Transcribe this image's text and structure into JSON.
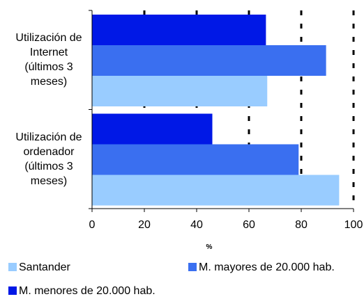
{
  "chart_data": {
    "type": "bar",
    "orientation": "horizontal",
    "categories": [
      [
        "Utilización de",
        "Internet",
        "(últimos 3",
        "meses)"
      ],
      [
        "Utilización de",
        "ordenador",
        "(últimos 3",
        "meses)"
      ]
    ],
    "series": [
      {
        "name": "M. menores de 20.000 hab.",
        "color": "#0018e6",
        "values": [
          66.5,
          46
        ]
      },
      {
        "name": "M. mayores de 20.000 hab.",
        "color": "#3a6ff0",
        "values": [
          89.5,
          79
        ]
      },
      {
        "name": "Santander",
        "color": "#99ccff",
        "values": [
          67,
          94.5
        ]
      }
    ],
    "xlabel": "%",
    "xlim": [
      0,
      100
    ],
    "xticks": [
      0,
      20,
      40,
      60,
      80,
      100
    ],
    "grid": "vertical dashed",
    "legend": "bottom"
  },
  "legend": [
    {
      "label": "Santander",
      "color": "#99ccff"
    },
    {
      "label": "M. mayores de 20.000 hab.",
      "color": "#3a6ff0"
    },
    {
      "label": "M. menores de 20.000 hab.",
      "color": "#0018e6"
    }
  ]
}
